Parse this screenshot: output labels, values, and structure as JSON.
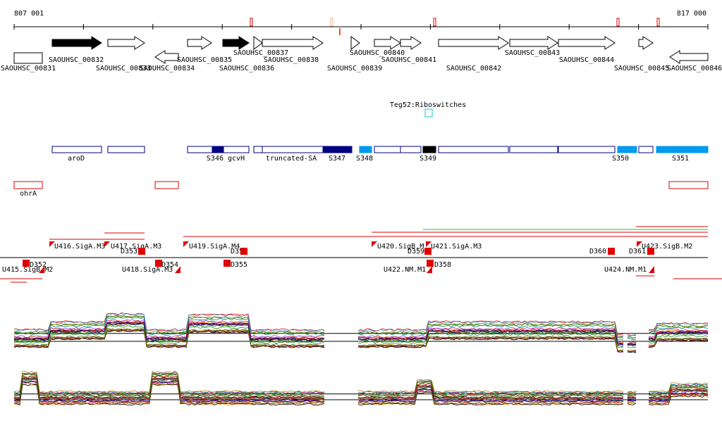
{
  "ruler": {
    "start": "807 001",
    "end": "817 000"
  },
  "genes": [
    "SAOUHSC_00831",
    "SAOUHSC_00832",
    "SAOUHSC_00833",
    "SAOUHSC_00834",
    "SAOUHSC_00835",
    "SAOUHSC_00836",
    "SAOUHSC_00837",
    "SAOUHSC_00838",
    "SAOUHSC_00839",
    "SAOUHSC_00840",
    "SAOUHSC_00841",
    "SAOUHSC_00842",
    "SAOUHSC_00843",
    "SAOUHSC_00844",
    "SAOUHSC_00845",
    "SAOUHSC_00846"
  ],
  "riboswitch": "Teg52:Riboswitches",
  "features": [
    "aroD",
    "S346 gcvH",
    "truncated-SA",
    "S347",
    "S348",
    "S349",
    "S350",
    "S351"
  ],
  "terminators": [
    "ohrA"
  ],
  "promoters": [
    "U416.SigA.M3",
    "U417.SigA.M3",
    "D353",
    "U419.SigA.M4",
    "D356",
    "U420.SigB.M",
    "D359",
    "U421.SigA.M3",
    "D360",
    "D361",
    "U423.SigB.M2",
    "D352",
    "D354",
    "D355",
    "D358",
    "U415.SigB.M2",
    "U418.SigA.M3",
    "U422.NM.M1",
    "U424.NM.M1"
  ]
}
